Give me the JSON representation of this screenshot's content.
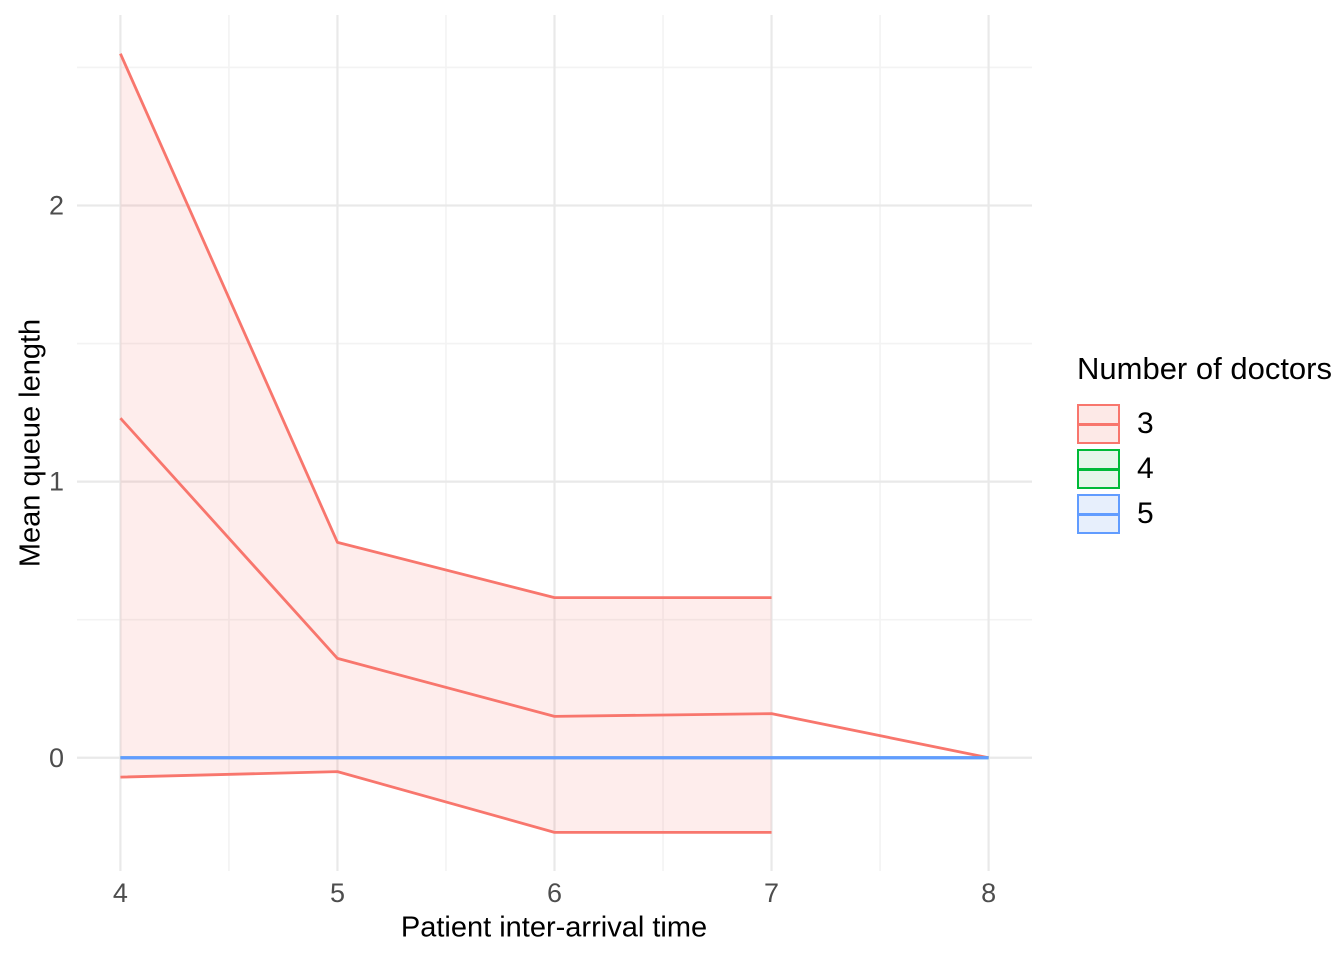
{
  "chart_data": {
    "type": "line",
    "title": "",
    "xlabel": "Patient inter-arrival time",
    "ylabel": "Mean queue length",
    "xlim": [
      3.8,
      8.2
    ],
    "ylim": [
      -0.41,
      2.69
    ],
    "x_ticks": [
      4,
      5,
      6,
      7,
      8
    ],
    "x_minor_ticks": [
      4.5,
      5.5,
      6.5,
      7.5
    ],
    "y_ticks": [
      0,
      1,
      2
    ],
    "y_minor_ticks": [
      0.5,
      1.5,
      2.5
    ],
    "grid": true,
    "legend_position": "right",
    "legend": {
      "title": "Number of doctors",
      "entries": [
        {
          "label": "3",
          "color": "#F8766D",
          "fill": "#FDE9E7"
        },
        {
          "label": "4",
          "color": "#00BA38",
          "fill": "#E5F6EA"
        },
        {
          "label": "5",
          "color": "#619CFF",
          "fill": "#E7EFFC"
        }
      ]
    },
    "series": [
      {
        "name": "3",
        "color": "#F8766D",
        "ribbon_fill": "rgba(248,118,109,0.13)",
        "x": [
          4,
          5,
          6,
          7,
          8
        ],
        "y": [
          1.23,
          0.36,
          0.15,
          0.16,
          0
        ],
        "ribbon": {
          "x": [
            4,
            5,
            6,
            7
          ],
          "upper": [
            2.55,
            0.78,
            0.58,
            0.58
          ],
          "lower": [
            -0.07,
            -0.05,
            -0.27,
            -0.27
          ]
        }
      },
      {
        "name": "4",
        "color": "#00BA38",
        "x": [
          4,
          5,
          6,
          7,
          8
        ],
        "y": [
          0,
          0,
          0,
          0,
          0
        ]
      },
      {
        "name": "5",
        "color": "#619CFF",
        "x": [
          4,
          5,
          6,
          7,
          8
        ],
        "y": [
          0,
          0,
          0,
          0,
          0
        ]
      }
    ],
    "style": {
      "grid_major_color": "#E9E9E9",
      "grid_minor_color": "#F3F3F3",
      "tick_label_color": "#4D4D4D",
      "line_width": 2.8
    }
  }
}
